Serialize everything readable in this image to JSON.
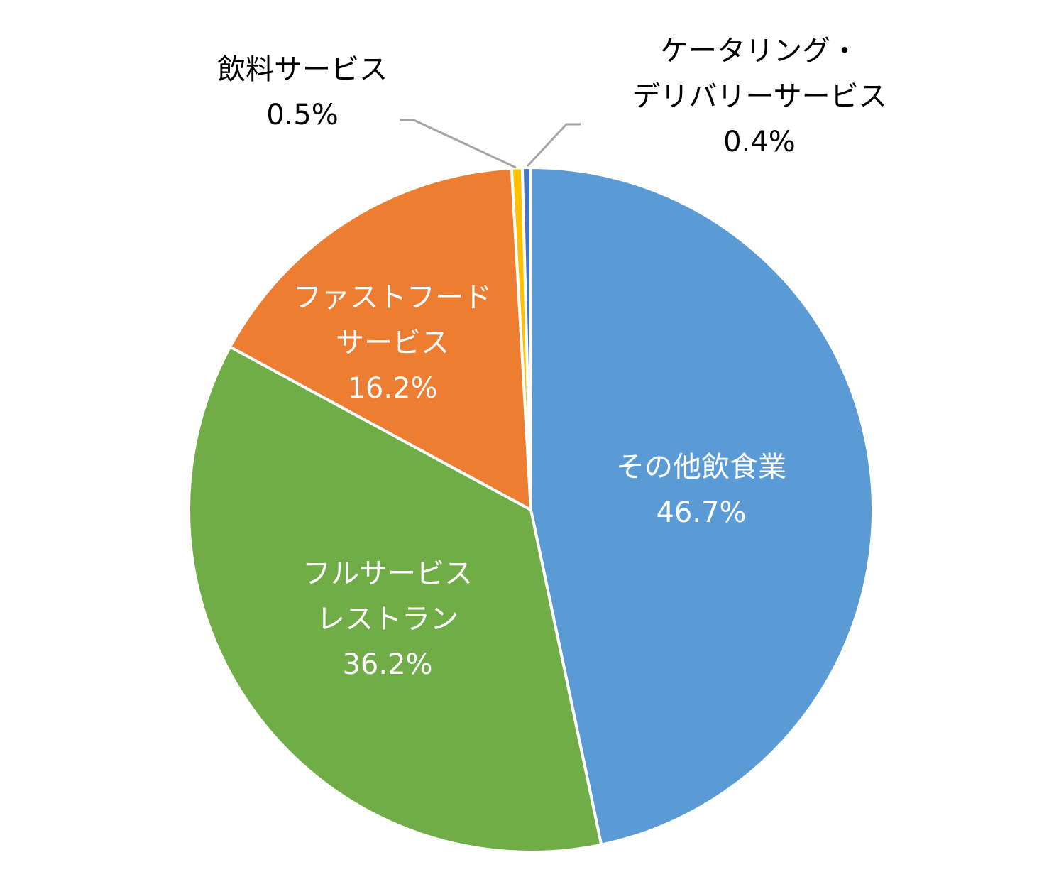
{
  "chart_data": {
    "type": "pie",
    "title": "",
    "start_angle_deg": 0,
    "direction": "clockwise",
    "slices": [
      {
        "label_lines": [
          "その他飲食業"
        ],
        "value": 46.7,
        "value_label": "46.7%",
        "color": "#5B9BD5"
      },
      {
        "label_lines": [
          "フルサービス",
          "レストラン"
        ],
        "value": 36.2,
        "value_label": "36.2%",
        "color": "#70AD47"
      },
      {
        "label_lines": [
          "ファストフード",
          "サービス"
        ],
        "value": 16.2,
        "value_label": "16.2%",
        "color": "#ED7D31"
      },
      {
        "label_lines": [
          "飲料サービス"
        ],
        "value": 0.5,
        "value_label": "0.5%",
        "color": "#FFC000"
      },
      {
        "label_lines": [
          "ケータリング・",
          "デリバリーサービス"
        ],
        "value": 0.4,
        "value_label": "0.4%",
        "color": "#4472C4"
      }
    ],
    "leader_line_color": "#A5A5A5"
  }
}
